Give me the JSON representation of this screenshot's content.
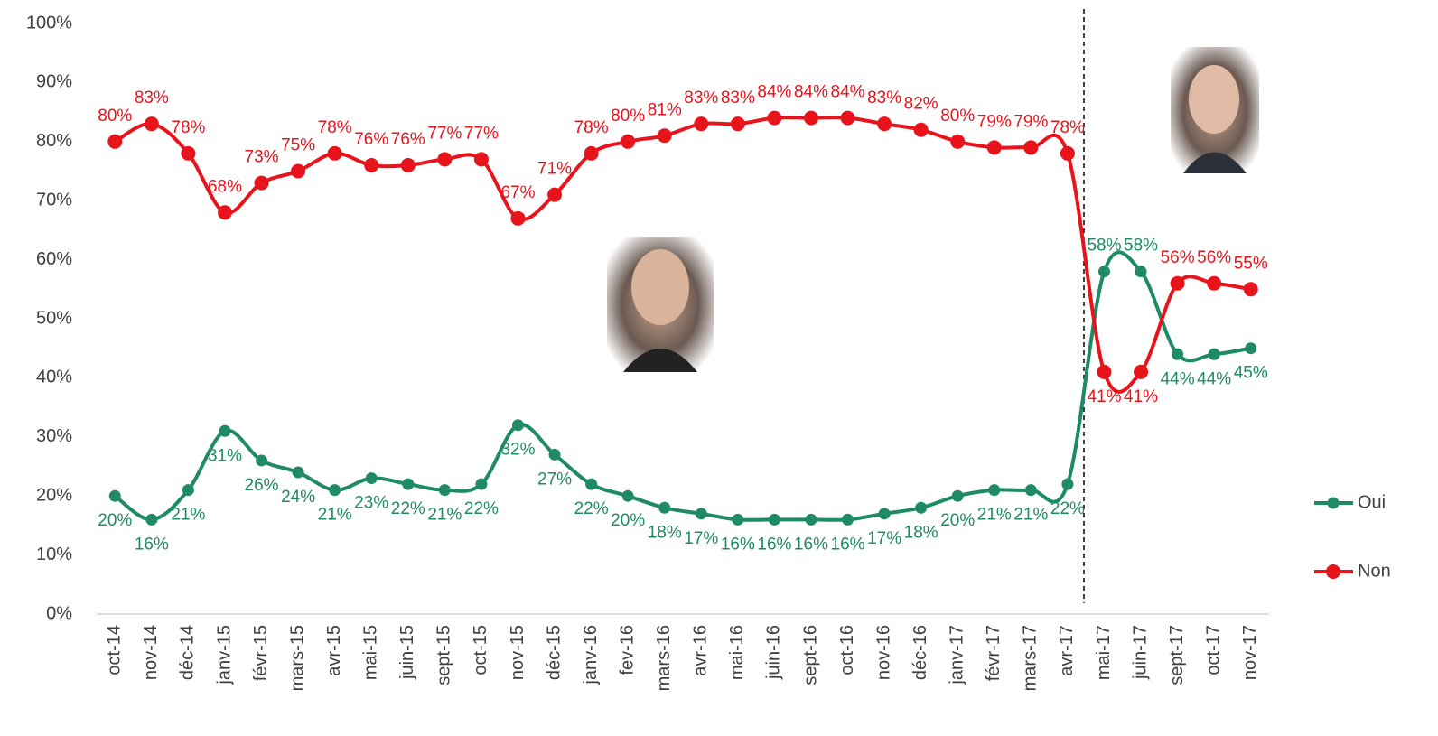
{
  "chart_data": {
    "type": "line",
    "categories": [
      "oct-14",
      "nov-14",
      "déc-14",
      "janv-15",
      "févr-15",
      "mars-15",
      "avr-15",
      "mai-15",
      "juin-15",
      "sept-15",
      "oct-15",
      "nov-15",
      "déc-15",
      "janv-16",
      "fev-16",
      "mars-16",
      "avr-16",
      "mai-16",
      "juin-16",
      "sept-16",
      "oct-16",
      "nov-16",
      "déc-16",
      "janv-17",
      "févr-17",
      "mars-17",
      "avr-17",
      "mai-17",
      "juin-17",
      "sept-17",
      "oct-17",
      "nov-17"
    ],
    "series": [
      {
        "name": "Oui",
        "color": "#1f8a66",
        "values": [
          20,
          16,
          21,
          31,
          26,
          24,
          21,
          23,
          22,
          21,
          22,
          32,
          27,
          22,
          20,
          18,
          17,
          16,
          16,
          16,
          16,
          17,
          18,
          20,
          21,
          21,
          22,
          58,
          58,
          44,
          44,
          45
        ],
        "value_labels": [
          "20%",
          "16%",
          "21%",
          "31%",
          "26%",
          "24%",
          "21%",
          "23%",
          "22%",
          "21%",
          "22%",
          "32%",
          "27%",
          "22%",
          "20%",
          "18%",
          "17%",
          "16%",
          "16%",
          "16%",
          "16%",
          "17%",
          "18%",
          "20%",
          "21%",
          "21%",
          "22%",
          "58%",
          "58%",
          "44%",
          "44%",
          "45%"
        ]
      },
      {
        "name": "Non",
        "color": "#e8141c",
        "values": [
          80,
          83,
          78,
          68,
          73,
          75,
          78,
          76,
          76,
          77,
          77,
          67,
          71,
          78,
          80,
          81,
          83,
          83,
          84,
          84,
          84,
          83,
          82,
          80,
          79,
          79,
          78,
          41,
          41,
          56,
          56,
          55
        ],
        "value_labels": [
          "80%",
          "83%",
          "78%",
          "68%",
          "73%",
          "75%",
          "78%",
          "76%",
          "76%",
          "77%",
          "77%",
          "67%",
          "71%",
          "78%",
          "80%",
          "81%",
          "83%",
          "83%",
          "84%",
          "84%",
          "84%",
          "83%",
          "82%",
          "80%",
          "79%",
          "79%",
          "78%",
          "41%",
          "41%",
          "56%",
          "56%",
          "55%"
        ]
      }
    ],
    "ylim": [
      0,
      100
    ],
    "yticks": [
      {
        "value": 0,
        "label": "0%"
      },
      {
        "value": 10,
        "label": "10%"
      },
      {
        "value": 20,
        "label": "20%"
      },
      {
        "value": 30,
        "label": "30%"
      },
      {
        "value": 40,
        "label": "40%"
      },
      {
        "value": 50,
        "label": "50%"
      },
      {
        "value": 60,
        "label": "60%"
      },
      {
        "value": 70,
        "label": "70%"
      },
      {
        "value": 80,
        "label": "80%"
      },
      {
        "value": 90,
        "label": "90%"
      },
      {
        "value": 100,
        "label": "100%"
      }
    ],
    "grid": false,
    "legend": "right"
  }
}
